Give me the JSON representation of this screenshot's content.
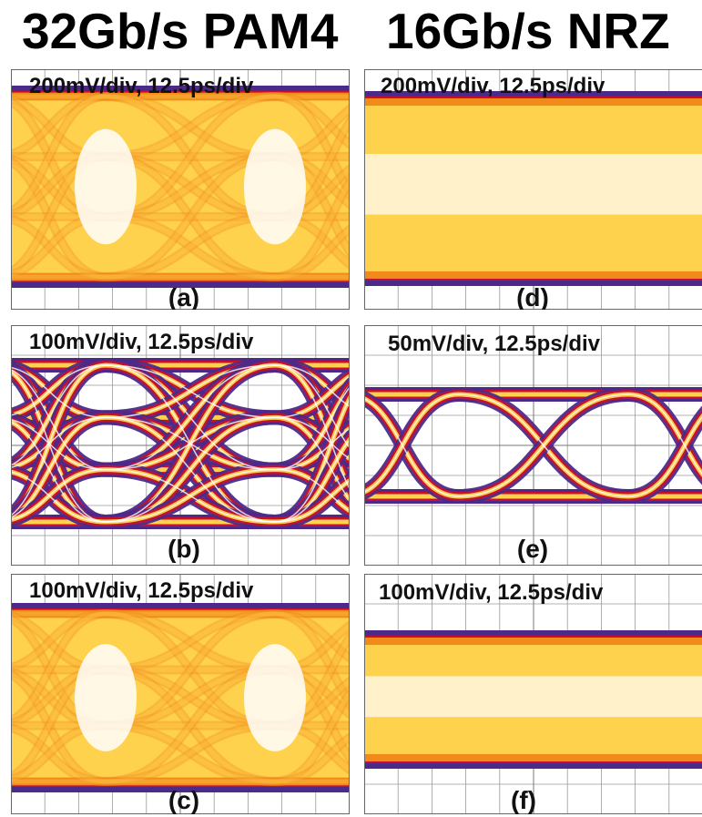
{
  "titles": {
    "left": "32Gb/s PAM4",
    "right": "16Gb/s NRZ"
  },
  "panels": [
    {
      "id": "a",
      "label": "(a)",
      "caption": "200mV/div, 12.5ps/div",
      "signal": "PAM4",
      "style": "closed"
    },
    {
      "id": "b",
      "label": "(b)",
      "caption": "100mV/div, 12.5ps/div",
      "signal": "PAM4",
      "style": "open"
    },
    {
      "id": "c",
      "label": "(c)",
      "caption": "100mV/div, 12.5ps/div",
      "signal": "PAM4",
      "style": "closed"
    },
    {
      "id": "d",
      "label": "(d)",
      "caption": "200mV/div, 12.5ps/div",
      "signal": "NRZ",
      "style": "closed"
    },
    {
      "id": "e",
      "label": "(e)",
      "caption": "50mV/div, 12.5ps/div",
      "signal": "NRZ",
      "style": "open"
    },
    {
      "id": "f",
      "label": "(f)",
      "caption": "100mV/div, 12.5ps/div",
      "signal": "NRZ",
      "style": "closed"
    }
  ],
  "colors": {
    "hot": "#ffffff",
    "warm": "#ffd24d",
    "mid": "#f08a1a",
    "cool": "#c8102e",
    "cold": "#4b2a8a",
    "grid": "#9a9a9a"
  }
}
